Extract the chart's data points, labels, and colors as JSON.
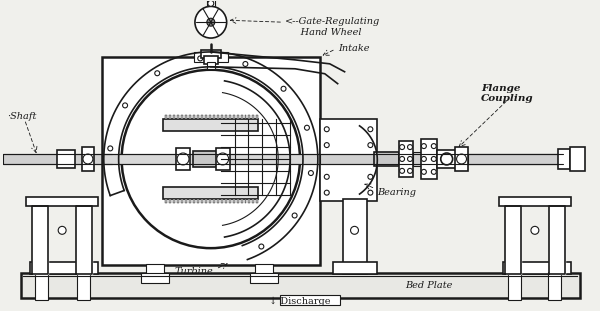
{
  "bg_color": "#f0f0ec",
  "line_color": "#1a1a1a",
  "labels": {
    "gate_regulating": "<--Gate-Regulating\n     Hand Wheel",
    "intake": "Intake",
    "shaft": "Shaft",
    "flange_coupling": "Flange\nCoupling",
    "bearing": "Bearing",
    "turbine": "Turbine",
    "bed_plate": "Bed Plate",
    "discharge": "↓ Discharge"
  },
  "figsize": [
    6.0,
    3.11
  ],
  "dpi": 100
}
